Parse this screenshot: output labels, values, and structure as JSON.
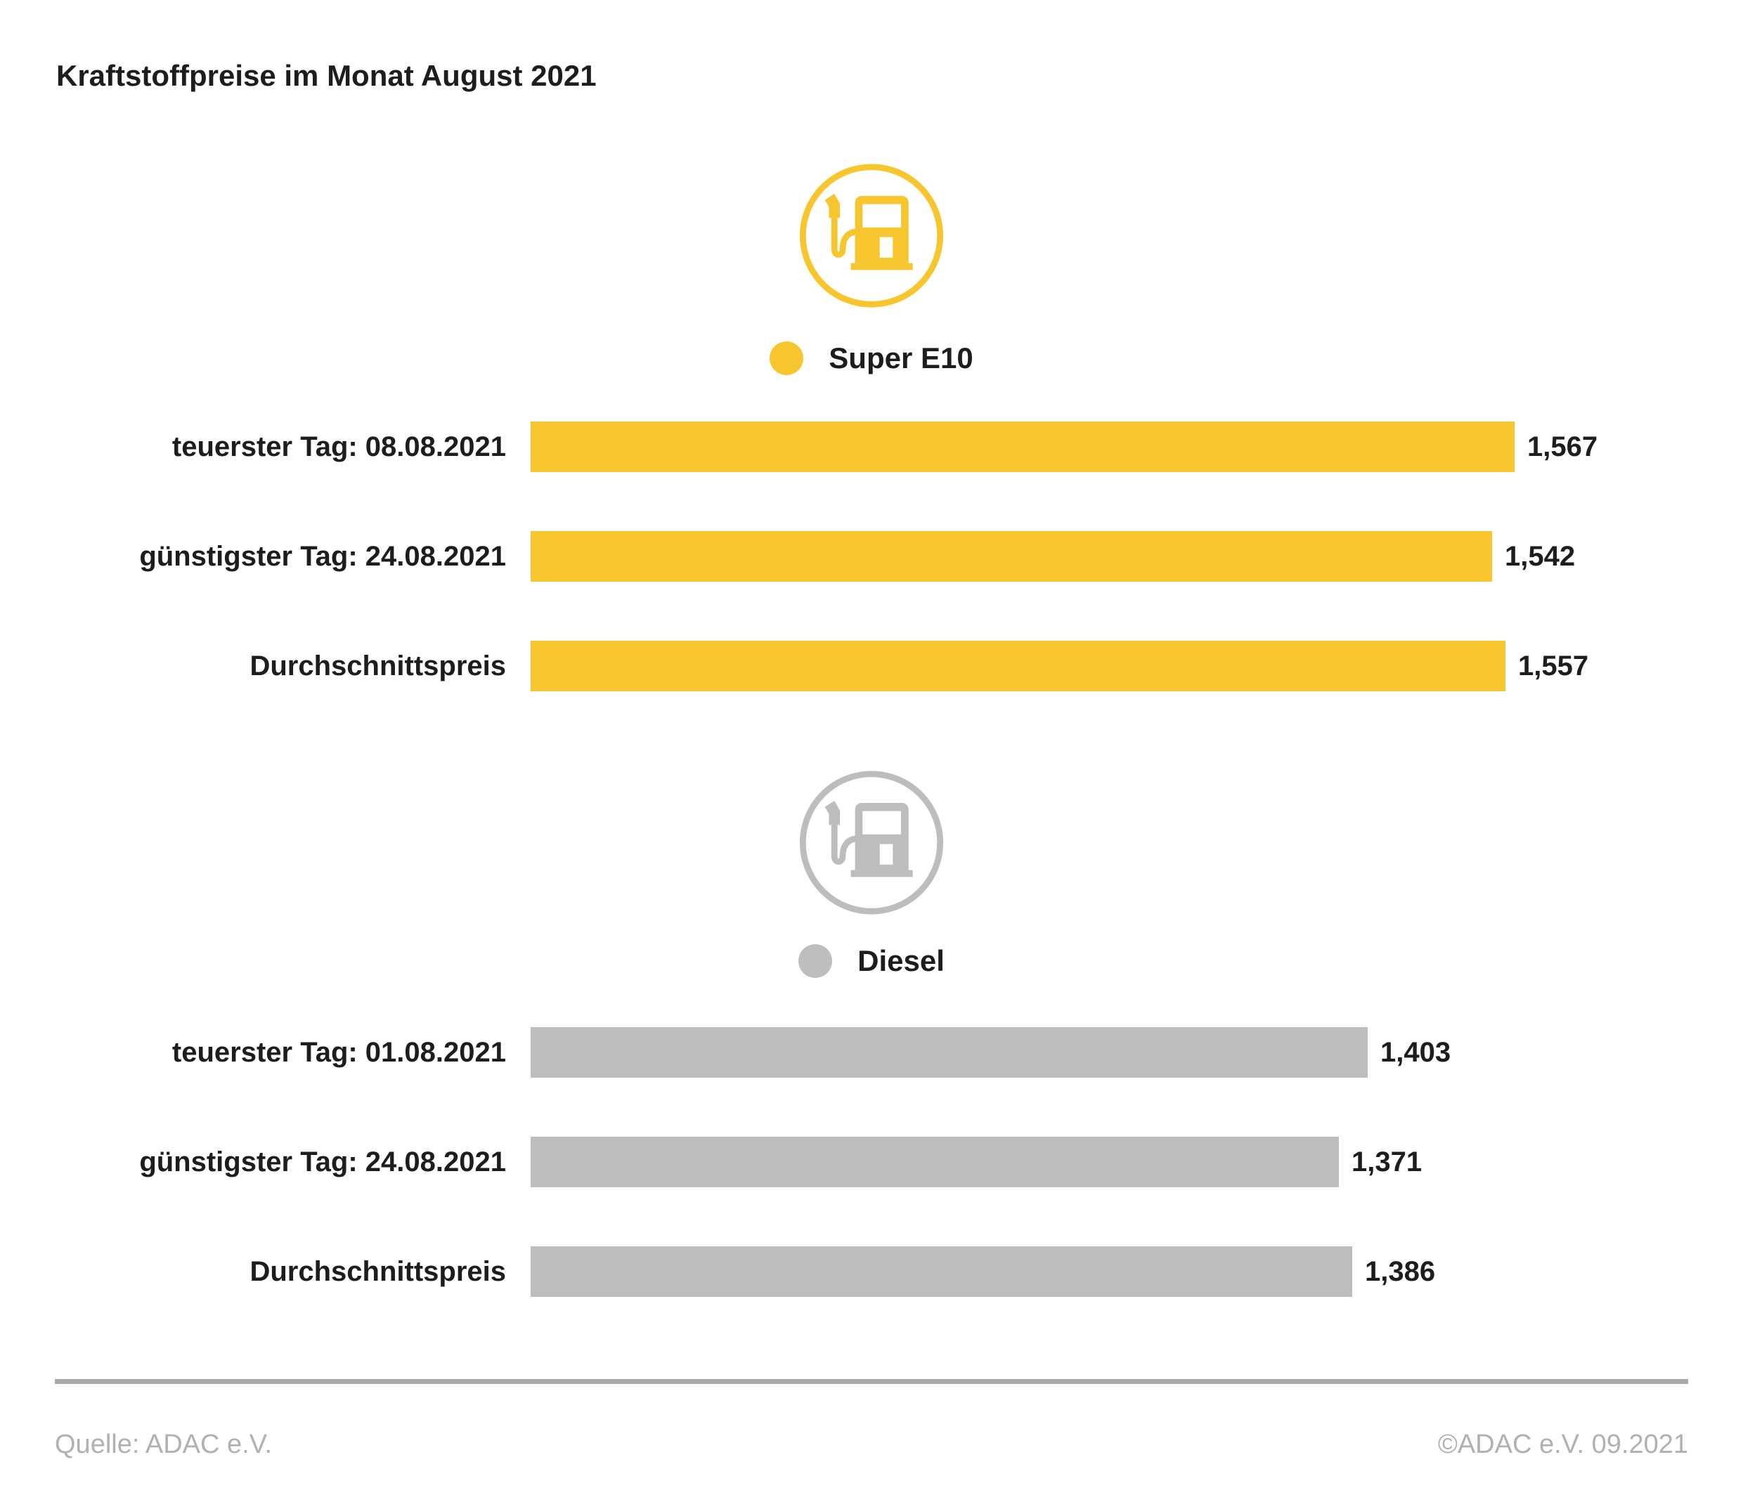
{
  "title": "Kraftstoffpreise im Monat August 2021",
  "colors": {
    "super_e10": "#F7C62F",
    "diesel": "#BDBDBD",
    "text": "#1D1D1B",
    "rule": "#A9A9A9",
    "footer_text": "#B1B1B1"
  },
  "chart_data": [
    {
      "type": "bar",
      "orientation": "horizontal",
      "series_name": "Super E10",
      "color": "#F7C62F",
      "icon": "fuel-pump-icon",
      "legend_position": "top-center",
      "categories": [
        "teuerster Tag: 08.08.2021",
        "günstigster Tag: 24.08.2021",
        "Durchschnittspreis"
      ],
      "values": [
        1.567,
        1.542,
        1.557
      ],
      "value_labels": [
        "1,567",
        "1,542",
        "1,557"
      ]
    },
    {
      "type": "bar",
      "orientation": "horizontal",
      "series_name": "Diesel",
      "color": "#BDBDBD",
      "icon": "fuel-pump-icon",
      "legend_position": "top-center",
      "categories": [
        "teuerster Tag: 01.08.2021",
        "günstigster Tag: 24.08.2021",
        "Durchschnittspreis"
      ],
      "values": [
        1.403,
        1.371,
        1.386
      ],
      "value_labels": [
        "1,403",
        "1,371",
        "1,386"
      ]
    }
  ],
  "footer": {
    "source": "Quelle: ADAC e.V.",
    "copyright": "©ADAC e.V. 09.2021"
  }
}
